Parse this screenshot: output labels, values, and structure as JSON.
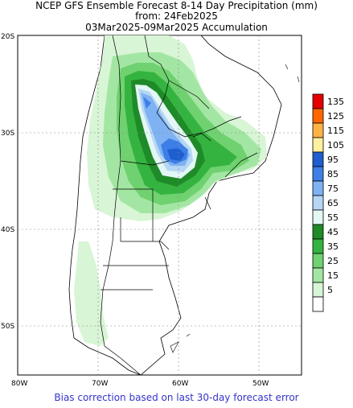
{
  "titles": {
    "line1": "NCEP GFS Ensemble Forecast 8-14 Day Precipitation (mm)",
    "line2": "from: 24Feb2025",
    "line3": "03Mar2025-09Mar2025 Accumulation"
  },
  "footer": "Bias correction based on last 30-day forecast error",
  "map": {
    "lat_labels": [
      "20S",
      "30S",
      "40S",
      "50S"
    ],
    "lon_labels": [
      "80W",
      "70W",
      "60W",
      "50W"
    ]
  },
  "legend": {
    "items": [
      {
        "label": "135",
        "color": "#e60000"
      },
      {
        "label": "125",
        "color": "#ff6600"
      },
      {
        "label": "115",
        "color": "#ffb347"
      },
      {
        "label": "105",
        "color": "#fff0a0"
      },
      {
        "label": "95",
        "color": "#1e5fd0"
      },
      {
        "label": "85",
        "color": "#3d7fe6"
      },
      {
        "label": "75",
        "color": "#7fb2f2"
      },
      {
        "label": "65",
        "color": "#b5d6f5"
      },
      {
        "label": "55",
        "color": "#e3f7f4"
      },
      {
        "label": "45",
        "color": "#1f8a28"
      },
      {
        "label": "35",
        "color": "#35b340"
      },
      {
        "label": "25",
        "color": "#6fd16f"
      },
      {
        "label": "15",
        "color": "#a3e6a3"
      },
      {
        "label": "5",
        "color": "#d8f5d6"
      },
      {
        "label": "",
        "color": "#ffffff"
      }
    ]
  }
}
